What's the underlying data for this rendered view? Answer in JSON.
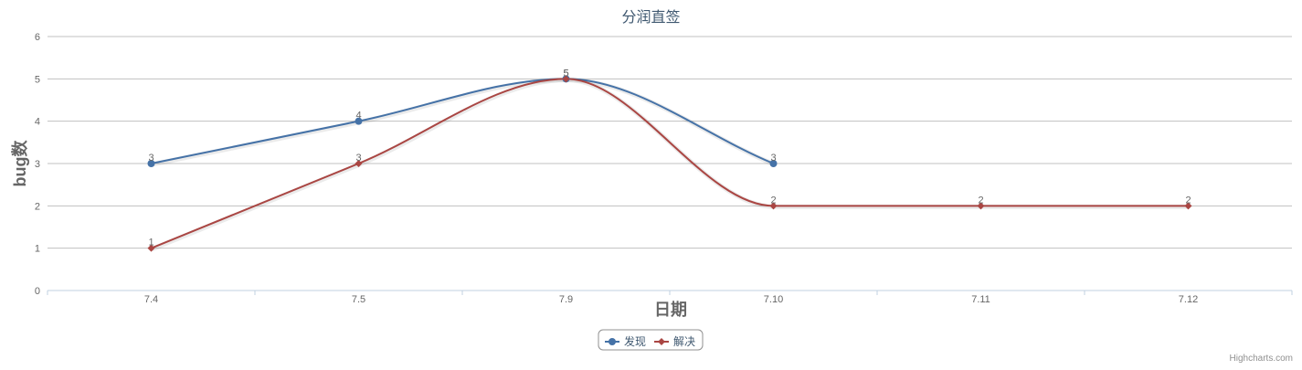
{
  "chart_data": {
    "type": "line",
    "title": "分润直签",
    "xlabel": "日期",
    "ylabel": "bug数",
    "categories": [
      "7.4",
      "7.5",
      "7.9",
      "7.10",
      "7.11",
      "7.12"
    ],
    "ylim": [
      0,
      6
    ],
    "yticks": [
      "0",
      "1",
      "2",
      "3",
      "4",
      "5",
      "6"
    ],
    "grid": true,
    "legend_position": "bottom-center",
    "smooth": true,
    "series": [
      {
        "name": "发现",
        "color": "#4572A7",
        "marker": "circle",
        "values": [
          3,
          4,
          5,
          3,
          null,
          null
        ]
      },
      {
        "name": "解决",
        "color": "#AA4643",
        "marker": "diamond",
        "values": [
          1,
          3,
          5,
          2,
          2,
          2
        ]
      }
    ]
  },
  "credits": "Highcharts.com"
}
